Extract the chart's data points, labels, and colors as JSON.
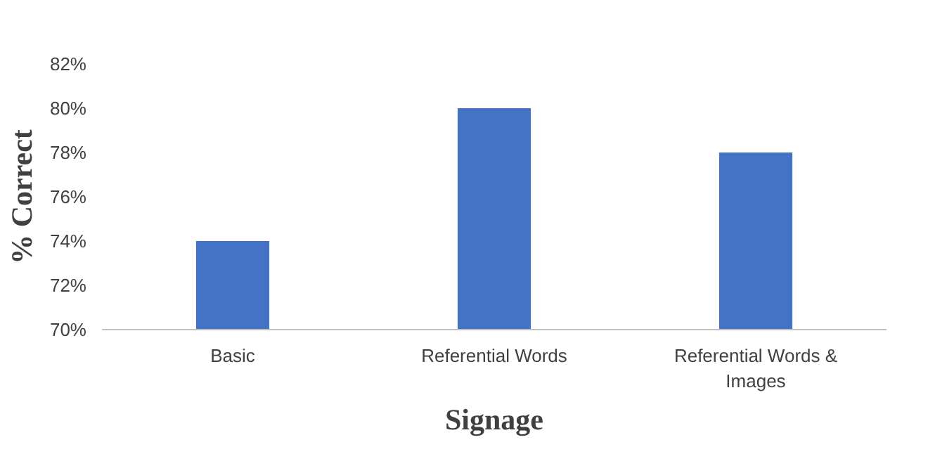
{
  "chart_data": {
    "type": "bar",
    "categories": [
      "Basic",
      "Referential Words",
      "Referential Words & Images"
    ],
    "values": [
      74,
      80,
      78
    ],
    "color": "#4472c4",
    "ylim": [
      70,
      82
    ],
    "yticks": [
      {
        "value": 70,
        "label": "70%"
      },
      {
        "value": 72,
        "label": "72%"
      },
      {
        "value": 74,
        "label": "74%"
      },
      {
        "value": 76,
        "label": "76%"
      },
      {
        "value": 78,
        "label": "78%"
      },
      {
        "value": 80,
        "label": "80%"
      },
      {
        "value": 82,
        "label": "82%"
      }
    ],
    "xlabel": "Signage",
    "ylabel": "% Correct",
    "grid": false
  }
}
